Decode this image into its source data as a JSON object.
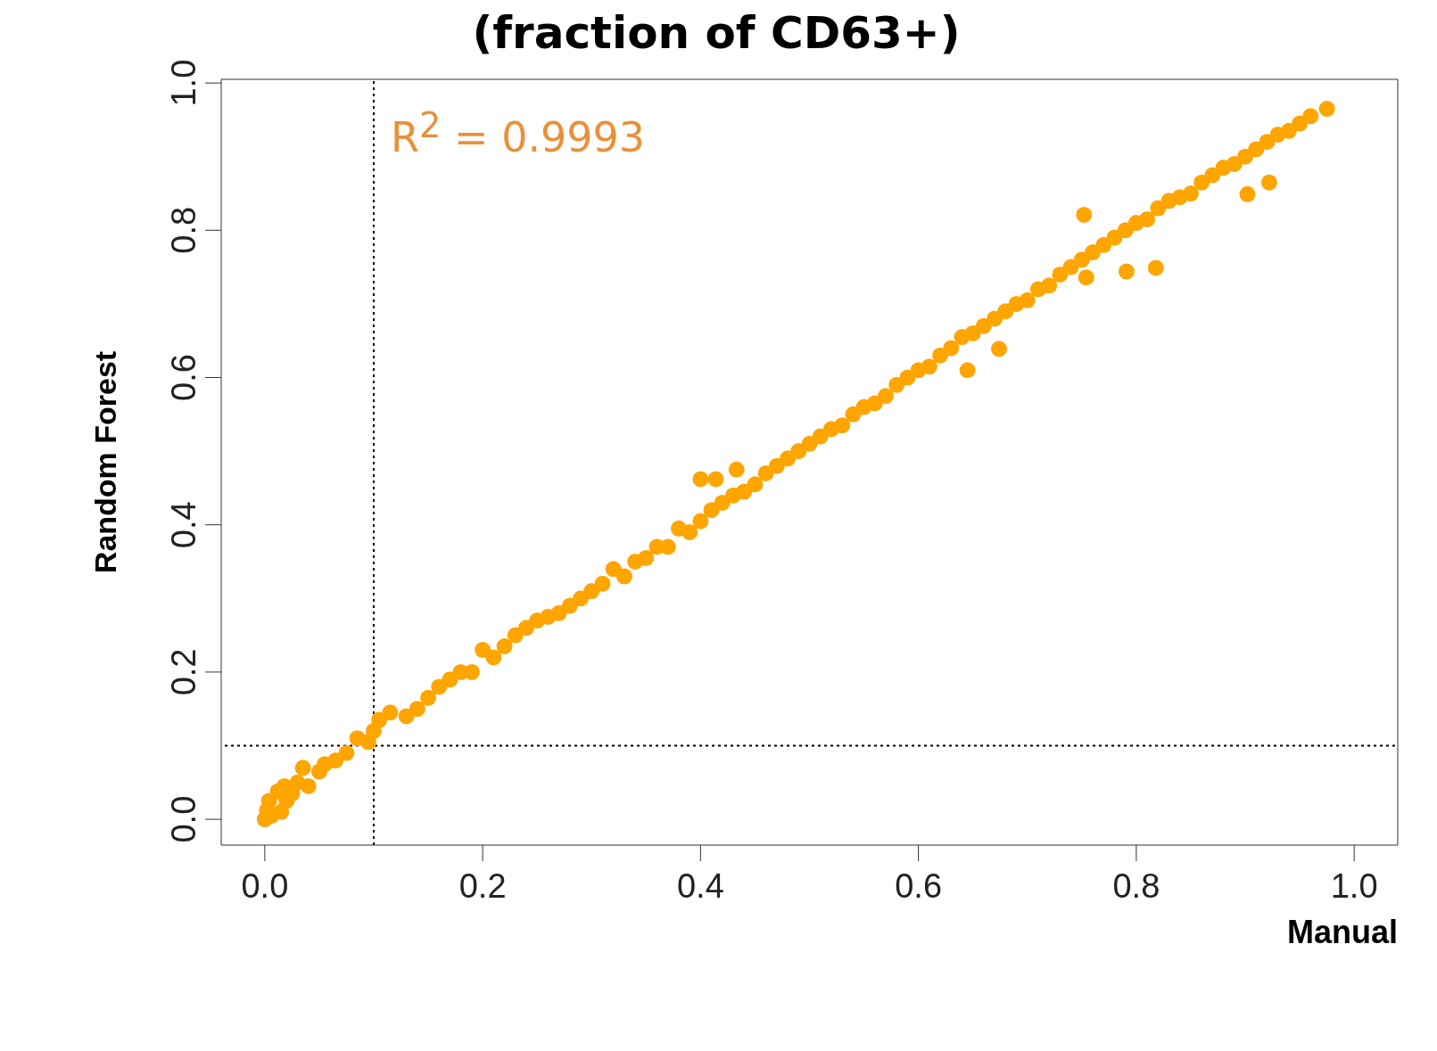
{
  "chart_data": {
    "type": "scatter",
    "title": "(fraction of CD63+)",
    "xlabel": "Manual",
    "ylabel": "Random Forest",
    "annotations": [
      "R$^{2}$ = 0.9993"
    ],
    "xlim": [
      -0.04,
      1.04
    ],
    "ylim": [
      -0.035,
      1.005
    ],
    "xticks": [
      {
        "value": 0,
        "label": "0.0"
      },
      0.2,
      0.4,
      0.6,
      0.8,
      {
        "value": 1,
        "label": "1.0"
      }
    ],
    "yticks": [
      {
        "value": 0,
        "label": "0.0"
      },
      0.2,
      0.4,
      0.6,
      0.8,
      {
        "value": 1,
        "label": "1.0"
      }
    ],
    "grid": false,
    "legend": false,
    "marker": "circle",
    "ref_lines": [
      {
        "axis": "x",
        "value": 0.1,
        "line_style": "dotted",
        "color": "#000000"
      },
      {
        "axis": "y",
        "value": 0.1,
        "line_style": "dotted",
        "color": "#000000"
      }
    ],
    "series": [
      {
        "color": "#ffa500",
        "x": [
          0,
          0.002,
          0.004,
          0.006,
          0.012,
          0.015,
          0.018,
          0.02,
          0.025,
          0.03,
          0.035,
          0.04,
          0.05,
          0.055,
          0.065,
          0.075,
          0.085,
          0.095,
          0.1,
          0.105,
          0.115,
          0.13,
          0.14,
          0.15,
          0.16,
          0.17,
          0.18,
          0.19,
          0.2,
          0.21,
          0.22,
          0.23,
          0.24,
          0.25,
          0.26,
          0.27,
          0.28,
          0.29,
          0.3,
          0.31,
          0.32,
          0.33,
          0.34,
          0.35,
          0.36,
          0.37,
          0.38,
          0.39,
          0.4,
          0.4,
          0.414,
          0.433,
          0.41,
          0.42,
          0.43,
          0.44,
          0.45,
          0.46,
          0.47,
          0.48,
          0.49,
          0.5,
          0.51,
          0.52,
          0.53,
          0.54,
          0.55,
          0.56,
          0.57,
          0.58,
          0.59,
          0.6,
          0.61,
          0.62,
          0.63,
          0.64,
          0.645,
          0.65,
          0.66,
          0.674,
          0.67,
          0.68,
          0.69,
          0.7,
          0.71,
          0.72,
          0.73,
          0.74,
          0.75,
          0.752,
          0.754,
          0.76,
          0.77,
          0.78,
          0.791,
          0.79,
          0.8,
          0.81,
          0.818,
          0.82,
          0.83,
          0.84,
          0.85,
          0.86,
          0.87,
          0.88,
          0.89,
          0.9,
          0.902,
          0.91,
          0.922,
          0.92,
          0.93,
          0.94,
          0.95,
          0.96,
          0.975
        ],
        "values": [
          0,
          0.012,
          0.025,
          0.005,
          0.038,
          0.01,
          0.045,
          0.025,
          0.035,
          0.05,
          0.07,
          0.045,
          0.065,
          0.075,
          0.08,
          0.09,
          0.11,
          0.105,
          0.12,
          0.135,
          0.145,
          0.14,
          0.15,
          0.165,
          0.18,
          0.19,
          0.2,
          0.2,
          0.23,
          0.22,
          0.235,
          0.25,
          0.26,
          0.27,
          0.275,
          0.28,
          0.29,
          0.3,
          0.31,
          0.32,
          0.34,
          0.33,
          0.35,
          0.355,
          0.37,
          0.37,
          0.395,
          0.39,
          0.405,
          0.462,
          0.462,
          0.475,
          0.42,
          0.43,
          0.44,
          0.445,
          0.455,
          0.47,
          0.48,
          0.49,
          0.5,
          0.51,
          0.52,
          0.53,
          0.535,
          0.55,
          0.56,
          0.565,
          0.575,
          0.59,
          0.6,
          0.61,
          0.615,
          0.63,
          0.64,
          0.655,
          0.61,
          0.66,
          0.67,
          0.639,
          0.68,
          0.69,
          0.7,
          0.705,
          0.72,
          0.725,
          0.74,
          0.75,
          0.76,
          0.821,
          0.736,
          0.77,
          0.78,
          0.79,
          0.744,
          0.8,
          0.81,
          0.815,
          0.749,
          0.83,
          0.84,
          0.845,
          0.85,
          0.865,
          0.875,
          0.885,
          0.89,
          0.9,
          0.849,
          0.91,
          0.865,
          0.92,
          0.93,
          0.935,
          0.945,
          0.955,
          0.965
        ]
      }
    ]
  }
}
